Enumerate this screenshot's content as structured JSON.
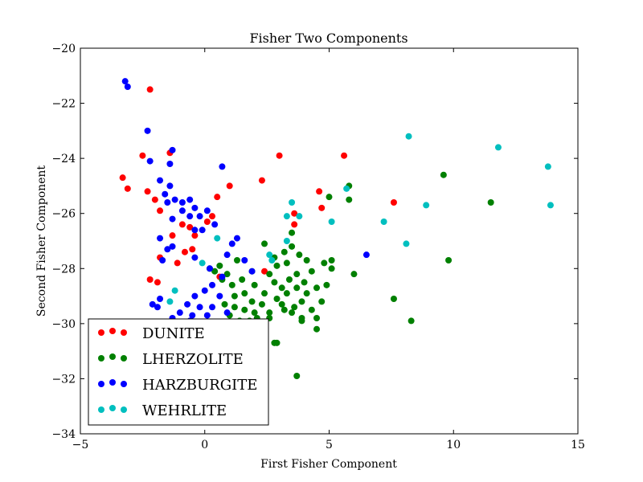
{
  "chart_data": {
    "type": "scatter",
    "title": "Fisher Two Components",
    "xlabel": "First Fisher Component",
    "ylabel": "Second Fisher Component",
    "xlim": [
      -5,
      15
    ],
    "ylim": [
      -34,
      -20
    ],
    "xticks": [
      -5,
      0,
      5,
      10,
      15
    ],
    "xtick_labels": [
      "−5",
      "0",
      "5",
      "10",
      "15"
    ],
    "yticks": [
      -34,
      -32,
      -30,
      -28,
      -26,
      -24,
      -22,
      -20
    ],
    "ytick_labels": [
      "−34",
      "−32",
      "−30",
      "−28",
      "−26",
      "−24",
      "−22",
      "−20"
    ],
    "grid": false,
    "legend_position": "lower-left",
    "series": [
      {
        "name": "DUNITE",
        "color": "#ff0000",
        "points": [
          [
            -2.2,
            -21.5
          ],
          [
            -3.3,
            -24.7
          ],
          [
            -3.1,
            -25.1
          ],
          [
            -2.5,
            -23.9
          ],
          [
            -2.3,
            -25.2
          ],
          [
            -2.0,
            -25.5
          ],
          [
            -1.8,
            -25.9
          ],
          [
            -1.4,
            -23.8
          ],
          [
            -1.3,
            -26.8
          ],
          [
            -0.9,
            -26.4
          ],
          [
            -0.6,
            -26.5
          ],
          [
            -0.5,
            -27.3
          ],
          [
            -1.8,
            -27.6
          ],
          [
            -2.2,
            -28.4
          ],
          [
            -1.9,
            -28.5
          ],
          [
            -1.1,
            -27.8
          ],
          [
            -0.8,
            -27.4
          ],
          [
            -0.4,
            -26.8
          ],
          [
            0.1,
            -26.3
          ],
          [
            0.3,
            -26.1
          ],
          [
            0.5,
            -25.4
          ],
          [
            1.0,
            -25.0
          ],
          [
            0.6,
            -28.3
          ],
          [
            2.3,
            -24.8
          ],
          [
            2.4,
            -28.1
          ],
          [
            3.0,
            -23.9
          ],
          [
            4.6,
            -25.2
          ],
          [
            4.7,
            -25.8
          ],
          [
            3.6,
            -26.4
          ],
          [
            3.6,
            -26.0
          ],
          [
            5.6,
            -23.9
          ],
          [
            7.6,
            -25.6
          ]
        ]
      },
      {
        "name": "LHERZOLITE",
        "color": "#008000",
        "points": [
          [
            9.6,
            -24.6
          ],
          [
            11.5,
            -25.6
          ],
          [
            9.8,
            -27.7
          ],
          [
            8.3,
            -29.9
          ],
          [
            7.6,
            -29.1
          ],
          [
            5.8,
            -25.0
          ],
          [
            5.8,
            -25.5
          ],
          [
            6.0,
            -28.2
          ],
          [
            5.0,
            -25.4
          ],
          [
            5.1,
            -27.7
          ],
          [
            5.1,
            -28.0
          ],
          [
            4.9,
            -28.6
          ],
          [
            4.8,
            -27.8
          ],
          [
            3.7,
            -31.9
          ],
          [
            2.8,
            -30.7
          ],
          [
            2.9,
            -30.7
          ],
          [
            2.6,
            -28.2
          ],
          [
            2.9,
            -27.9
          ],
          [
            3.2,
            -27.4
          ],
          [
            2.4,
            -27.1
          ],
          [
            2.8,
            -27.6
          ],
          [
            3.5,
            -26.7
          ],
          [
            3.5,
            -27.2
          ],
          [
            3.1,
            -29.3
          ],
          [
            3.3,
            -28.9
          ],
          [
            3.5,
            -29.6
          ],
          [
            3.7,
            -28.7
          ],
          [
            3.9,
            -29.2
          ],
          [
            4.1,
            -28.9
          ],
          [
            4.3,
            -29.5
          ],
          [
            4.5,
            -28.7
          ],
          [
            4.7,
            -29.2
          ],
          [
            4.5,
            -29.8
          ],
          [
            3.9,
            -29.9
          ],
          [
            3.6,
            -29.4
          ],
          [
            3.2,
            -29.5
          ],
          [
            2.9,
            -29.1
          ],
          [
            2.6,
            -29.6
          ],
          [
            2.3,
            -29.3
          ],
          [
            2.1,
            -29.8
          ],
          [
            1.9,
            -29.2
          ],
          [
            1.6,
            -29.5
          ],
          [
            1.4,
            -29.9
          ],
          [
            1.2,
            -29.4
          ],
          [
            1.0,
            -29.7
          ],
          [
            0.8,
            -29.3
          ],
          [
            1.2,
            -29.0
          ],
          [
            1.6,
            -28.9
          ],
          [
            2.0,
            -28.6
          ],
          [
            2.4,
            -28.9
          ],
          [
            2.8,
            -28.5
          ],
          [
            3.1,
            -28.7
          ],
          [
            3.4,
            -28.4
          ],
          [
            3.7,
            -28.2
          ],
          [
            4.0,
            -28.5
          ],
          [
            4.3,
            -28.1
          ],
          [
            4.1,
            -27.7
          ],
          [
            3.8,
            -27.5
          ],
          [
            3.3,
            -27.8
          ],
          [
            1.9,
            -28.1
          ],
          [
            1.5,
            -28.4
          ],
          [
            1.1,
            -28.6
          ],
          [
            0.7,
            -28.4
          ],
          [
            0.4,
            -28.1
          ],
          [
            0.6,
            -27.9
          ],
          [
            0.9,
            -28.2
          ],
          [
            1.3,
            -27.7
          ],
          [
            0.2,
            -28.0
          ],
          [
            1.3,
            -30.3
          ],
          [
            0.9,
            -30.1
          ],
          [
            1.7,
            -30.2
          ],
          [
            2.3,
            -30.0
          ],
          [
            3.9,
            -29.8
          ],
          [
            4.5,
            -30.2
          ],
          [
            2.6,
            -29.8
          ],
          [
            2.0,
            -29.6
          ],
          [
            1.8,
            -29.9
          ]
        ]
      },
      {
        "name": "HARZBURGITE",
        "color": "#0000ff",
        "points": [
          [
            -3.2,
            -21.2
          ],
          [
            -3.1,
            -21.4
          ],
          [
            -2.3,
            -23.0
          ],
          [
            -2.2,
            -24.1
          ],
          [
            -1.3,
            -23.7
          ],
          [
            -1.4,
            -24.2
          ],
          [
            -1.8,
            -24.8
          ],
          [
            -1.4,
            -25.0
          ],
          [
            -1.6,
            -25.3
          ],
          [
            -1.2,
            -25.5
          ],
          [
            -1.5,
            -25.6
          ],
          [
            -0.9,
            -25.6
          ],
          [
            -0.6,
            -25.5
          ],
          [
            -0.9,
            -25.9
          ],
          [
            -0.6,
            -26.1
          ],
          [
            -0.4,
            -25.8
          ],
          [
            -0.2,
            -26.1
          ],
          [
            0.1,
            -25.9
          ],
          [
            0.4,
            -26.4
          ],
          [
            0.7,
            -24.3
          ],
          [
            -0.4,
            -26.6
          ],
          [
            -0.1,
            -26.6
          ],
          [
            -1.3,
            -26.2
          ],
          [
            -1.8,
            -26.9
          ],
          [
            -1.3,
            -27.2
          ],
          [
            -1.5,
            -27.3
          ],
          [
            -1.7,
            -27.7
          ],
          [
            -0.4,
            -27.6
          ],
          [
            0.2,
            -28.0
          ],
          [
            0.9,
            -27.5
          ],
          [
            1.1,
            -27.1
          ],
          [
            1.3,
            -26.9
          ],
          [
            1.6,
            -27.7
          ],
          [
            0.7,
            -28.3
          ],
          [
            0.3,
            -28.6
          ],
          [
            0.0,
            -28.8
          ],
          [
            -0.4,
            -29.0
          ],
          [
            -0.7,
            -29.3
          ],
          [
            -1.0,
            -29.6
          ],
          [
            -1.8,
            -29.1
          ],
          [
            -1.9,
            -29.4
          ],
          [
            -2.1,
            -29.3
          ],
          [
            -1.3,
            -29.8
          ],
          [
            -1.0,
            -30.0
          ],
          [
            -0.5,
            -29.7
          ],
          [
            -0.2,
            -29.4
          ],
          [
            0.1,
            -29.7
          ],
          [
            0.3,
            -29.4
          ],
          [
            0.6,
            -29.0
          ],
          [
            0.9,
            -29.6
          ],
          [
            -0.6,
            -29.9
          ],
          [
            -0.3,
            -30.0
          ],
          [
            0.6,
            -30.0
          ],
          [
            1.9,
            -28.1
          ],
          [
            6.5,
            -27.5
          ]
        ]
      },
      {
        "name": "WEHRLITE",
        "color": "#00bfbf",
        "points": [
          [
            8.2,
            -23.2
          ],
          [
            11.8,
            -23.6
          ],
          [
            13.8,
            -24.3
          ],
          [
            13.9,
            -25.7
          ],
          [
            8.9,
            -25.7
          ],
          [
            7.2,
            -26.3
          ],
          [
            5.7,
            -25.1
          ],
          [
            5.1,
            -26.3
          ],
          [
            3.5,
            -25.6
          ],
          [
            3.3,
            -26.1
          ],
          [
            3.8,
            -26.1
          ],
          [
            3.3,
            -27.0
          ],
          [
            8.1,
            -27.1
          ],
          [
            2.6,
            -27.5
          ],
          [
            2.7,
            -27.7
          ],
          [
            0.5,
            -26.9
          ],
          [
            -0.1,
            -27.8
          ],
          [
            -1.2,
            -28.8
          ],
          [
            -1.4,
            -29.2
          ]
        ]
      }
    ]
  }
}
